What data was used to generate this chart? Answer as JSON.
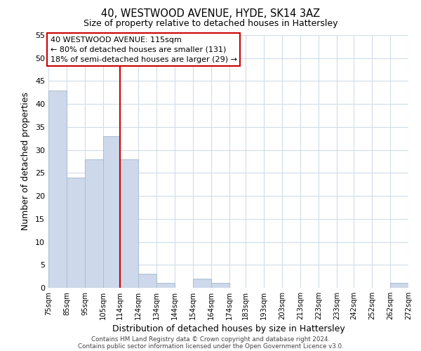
{
  "title": "40, WESTWOOD AVENUE, HYDE, SK14 3AZ",
  "subtitle": "Size of property relative to detached houses in Hattersley",
  "xlabel": "Distribution of detached houses by size in Hattersley",
  "ylabel": "Number of detached properties",
  "bin_edges": [
    75,
    85,
    95,
    105,
    114,
    124,
    134,
    144,
    154,
    164,
    174,
    183,
    193,
    203,
    213,
    223,
    233,
    242,
    252,
    262,
    272
  ],
  "bar_heights": [
    43,
    24,
    28,
    33,
    28,
    3,
    1,
    0,
    2,
    1,
    0,
    0,
    0,
    0,
    0,
    0,
    0,
    0,
    0,
    1
  ],
  "bar_color": "#cdd8ea",
  "bar_edgecolor": "#aabdd4",
  "vline_x": 114,
  "vline_color": "#cc0000",
  "ylim": [
    0,
    55
  ],
  "yticks": [
    0,
    5,
    10,
    15,
    20,
    25,
    30,
    35,
    40,
    45,
    50,
    55
  ],
  "annotation_title": "40 WESTWOOD AVENUE: 115sqm",
  "annotation_line1": "← 80% of detached houses are smaller (131)",
  "annotation_line2": "18% of semi-detached houses are larger (29) →",
  "footer_line1": "Contains HM Land Registry data © Crown copyright and database right 2024.",
  "footer_line2": "Contains public sector information licensed under the Open Government Licence v3.0.",
  "tick_labels": [
    "75sqm",
    "85sqm",
    "95sqm",
    "105sqm",
    "114sqm",
    "124sqm",
    "134sqm",
    "144sqm",
    "154sqm",
    "164sqm",
    "174sqm",
    "183sqm",
    "193sqm",
    "203sqm",
    "213sqm",
    "223sqm",
    "233sqm",
    "242sqm",
    "252sqm",
    "262sqm",
    "272sqm"
  ],
  "bg_color": "#ffffff",
  "grid_color": "#d0dce8"
}
